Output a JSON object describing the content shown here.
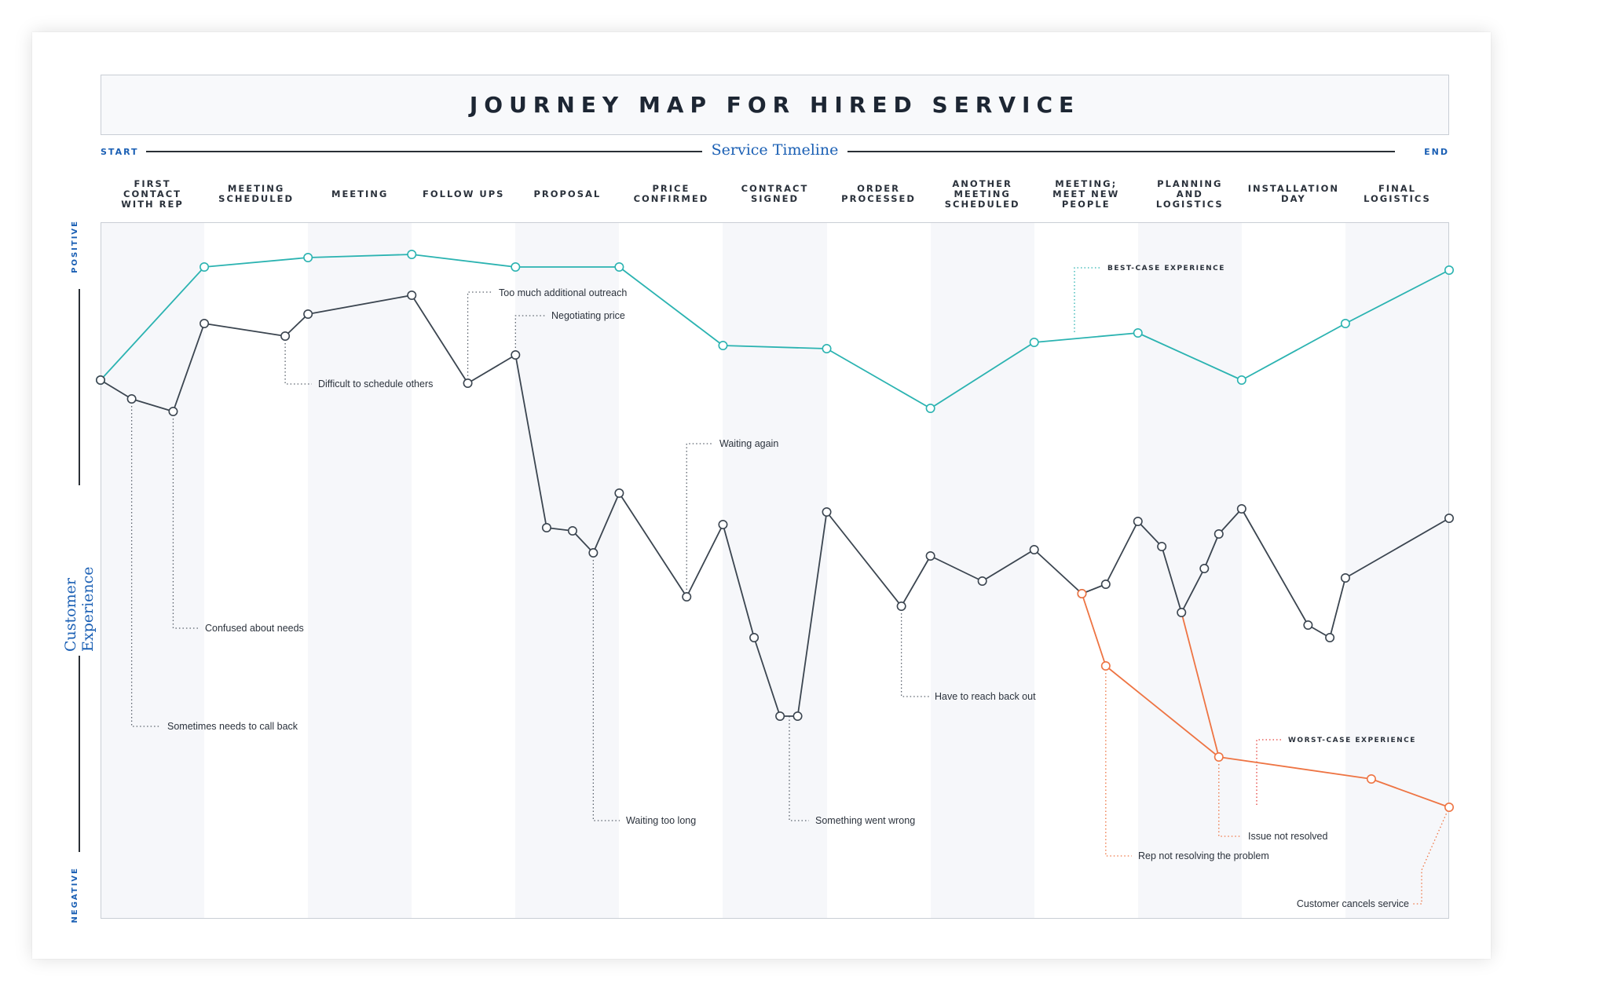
{
  "title": "JOURNEY MAP FOR HIRED SERVICE",
  "timeline": {
    "start": "START",
    "label": "Service Timeline",
    "end": "END"
  },
  "y_axis": {
    "positive": "POSITIVE",
    "label": "Customer Experience",
    "negative": "NEGATIVE"
  },
  "phases": [
    "FIRST CONTACT WITH REP",
    "MEETING SCHEDULED",
    "MEETING",
    "FOLLOW UPS",
    "PROPOSAL",
    "PRICE CONFIRMED",
    "CONTRACT SIGNED",
    "ORDER PROCESSED",
    "ANOTHER MEETING SCHEDULED",
    "MEETING; MEET NEW PEOPLE",
    "PLANNING AND LOGISTICS",
    "INSTALLATION DAY",
    "FINAL LOGISTICS"
  ],
  "colors": {
    "best": "#2bb3b1",
    "typical": "#3b4550",
    "worst": "#ee7443",
    "accent": "#1a5fb4",
    "worst_label": "#e5423c"
  },
  "chart_data": {
    "type": "line",
    "x_domain": [
      0,
      13
    ],
    "y_domain": [
      -1,
      1
    ],
    "series": [
      {
        "name": "BEST-CASE EXPERIENCE",
        "points": [
          [
            0,
            0.59
          ],
          [
            1,
            0.95
          ],
          [
            2,
            0.98
          ],
          [
            3,
            0.99
          ],
          [
            4,
            0.95
          ],
          [
            5,
            0.95
          ],
          [
            6,
            0.7
          ],
          [
            7,
            0.69
          ],
          [
            8,
            0.5
          ],
          [
            9,
            0.71
          ],
          [
            10,
            0.74
          ],
          [
            11,
            0.59
          ],
          [
            12,
            0.77
          ],
          [
            13,
            0.94
          ]
        ]
      },
      {
        "name": "",
        "points": [
          [
            0,
            0.59
          ],
          [
            0.3,
            0.53
          ],
          [
            0.7,
            0.49
          ],
          [
            1,
            0.77
          ],
          [
            1.78,
            0.73
          ],
          [
            2,
            0.8
          ],
          [
            3,
            0.86
          ],
          [
            3.54,
            0.58
          ],
          [
            4,
            0.67
          ],
          [
            4.3,
            0.12
          ],
          [
            4.55,
            0.11
          ],
          [
            4.75,
            0.04
          ],
          [
            5,
            0.23
          ],
          [
            5.65,
            -0.1
          ],
          [
            6,
            0.13
          ],
          [
            6.3,
            -0.23
          ],
          [
            6.55,
            -0.48
          ],
          [
            6.72,
            -0.48
          ],
          [
            7,
            0.17
          ],
          [
            7.72,
            -0.13
          ],
          [
            8,
            0.03
          ],
          [
            8.5,
            -0.05
          ],
          [
            9,
            0.05
          ],
          [
            9.46,
            -0.09
          ],
          [
            9.69,
            -0.06
          ],
          [
            10,
            0.14
          ],
          [
            10.23,
            0.06
          ],
          [
            10.42,
            -0.15
          ],
          [
            10.64,
            -0.01
          ],
          [
            10.78,
            0.1
          ],
          [
            11,
            0.18
          ],
          [
            11.64,
            -0.19
          ],
          [
            11.85,
            -0.23
          ],
          [
            12,
            -0.04
          ],
          [
            13,
            0.15
          ]
        ]
      },
      {
        "name": "WORST-CASE EXPERIENCE",
        "points": [
          [
            9.46,
            -0.09
          ],
          [
            9.69,
            -0.32
          ],
          [
            10.78,
            -0.61
          ],
          [
            12.25,
            -0.68
          ],
          [
            13,
            -0.77
          ]
        ]
      },
      {
        "name": "",
        "points": [
          [
            10.42,
            -0.15
          ],
          [
            10.78,
            -0.61
          ]
        ]
      }
    ],
    "annotations": [
      {
        "text": "Sometimes needs to call back",
        "x": 0.3,
        "y": 0.53
      },
      {
        "text": "Confused about needs",
        "x": 0.7,
        "y": 0.49
      },
      {
        "text": "Difficult to schedule others",
        "x": 1.78,
        "y": 0.73
      },
      {
        "text": "Too much additional outreach",
        "x": 3.54,
        "y": 0.58
      },
      {
        "text": "Negotiating price",
        "x": 4,
        "y": 0.67
      },
      {
        "text": "Waiting again",
        "x": 5.65,
        "y": -0.1
      },
      {
        "text": "Waiting too long",
        "x": 4.75,
        "y": 0.04
      },
      {
        "text": "Something went wrong",
        "x": 6.64,
        "y": -0.48
      },
      {
        "text": "Have to reach back out",
        "x": 7.72,
        "y": -0.13
      },
      {
        "text": "Rep not resolving the problem",
        "x": 9.69,
        "y": -0.32
      },
      {
        "text": "Issue not resolved",
        "x": 10.78,
        "y": -0.61
      },
      {
        "text": "Customer cancels service",
        "x": 13,
        "y": -0.77
      },
      {
        "text": "BEST-CASE EXPERIENCE",
        "x": 9.38,
        "y": 0.72
      },
      {
        "text": "WORST-CASE EXPERIENCE",
        "x": 11.14,
        "y": -0.61
      }
    ]
  }
}
